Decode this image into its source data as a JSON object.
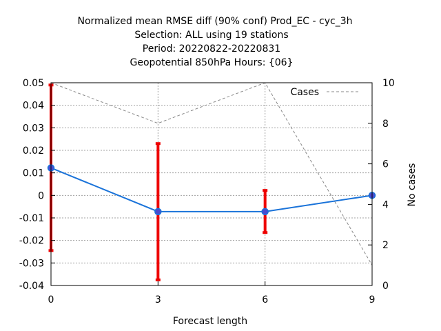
{
  "chart_data": {
    "type": "line",
    "title_lines": [
      "Normalized mean RMSE diff (90% conf) Prod_EC - cyc_3h",
      "Selection: ALL using    19 stations",
      "Period: 20220822-20220831",
      "Geopotential 850hPa   Hours: {06}"
    ],
    "xlabel": "Forecast length",
    "ylabel": "",
    "y2label": "No cases",
    "x": [
      0,
      3,
      6,
      9
    ],
    "xticks": [
      "0",
      "3",
      "6",
      "9"
    ],
    "xlim": [
      0,
      9
    ],
    "ylim": [
      -0.04,
      0.05
    ],
    "yticks": [
      "0.05",
      "0.04",
      "0.03",
      "0.02",
      "0.01",
      "0",
      "-0.01",
      "-0.02",
      "-0.03",
      "-0.04"
    ],
    "ytick_values": [
      0.05,
      0.04,
      0.03,
      0.02,
      0.01,
      0,
      -0.01,
      -0.02,
      -0.03,
      -0.04
    ],
    "y2lim": [
      0,
      10
    ],
    "y2ticks": [
      "10",
      "8",
      "6",
      "4",
      "2",
      "0"
    ],
    "y2tick_values": [
      10,
      8,
      6,
      4,
      2,
      0
    ],
    "grid": true,
    "legend_position": "top-right",
    "series": [
      {
        "values": [
          0.0122,
          -0.0072,
          -0.0072,
          0.0
        ],
        "color": "#1a73d9",
        "marker_color": "#4a4ad0"
      }
    ],
    "error_bars": {
      "color": "#ee0000",
      "lower": [
        -0.0245,
        -0.0375,
        -0.0165,
        0.0
      ],
      "upper": [
        0.049,
        0.023,
        0.0022,
        0.0
      ]
    },
    "cases_series": {
      "name": "Cases",
      "axis": "right",
      "values": [
        10,
        8,
        10,
        1
      ],
      "color": "#888888",
      "style": "dashed"
    }
  }
}
